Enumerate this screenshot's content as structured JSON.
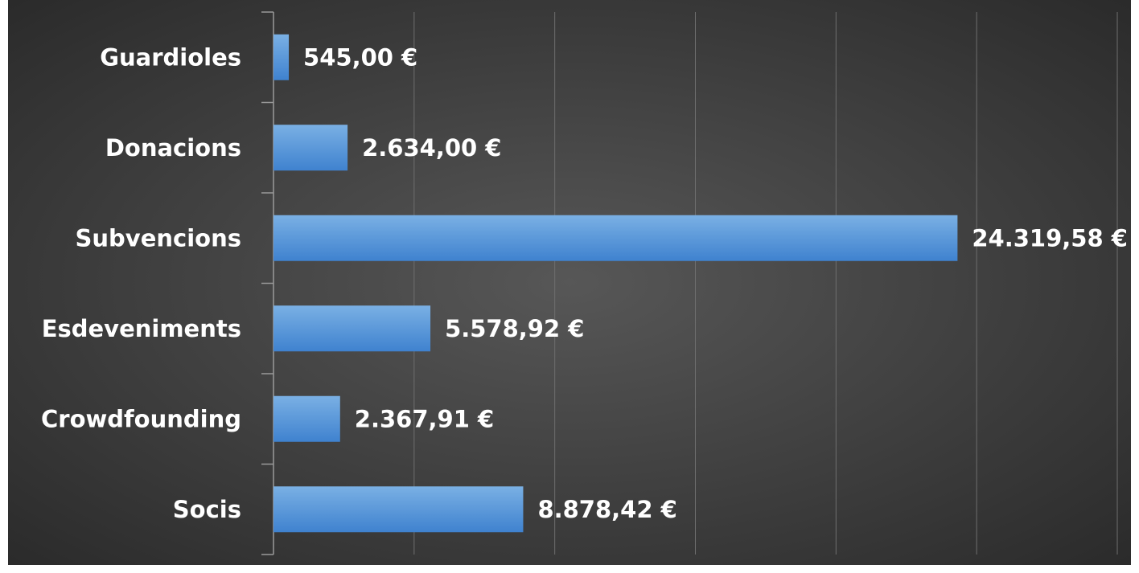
{
  "chart_data": {
    "type": "hbar",
    "categories": [
      "Guardioles",
      "Donacions",
      "Subvencions",
      "Esdeveniments",
      "Crowdfounding",
      "Socis"
    ],
    "values": [
      545,
      2634,
      24319.58,
      5578.92,
      2367.91,
      8878.42
    ],
    "value_labels": [
      "545,00 €",
      "2.634,00 €",
      "24.319,58 €",
      "5.578,92 €",
      "2.367,91 €",
      "8.878,42 €"
    ],
    "color": "#5b9bd5",
    "xlim": [
      0,
      30000
    ],
    "xticks": [
      0,
      5000,
      10000,
      15000,
      20000,
      25000,
      30000
    ],
    "grid": true
  }
}
